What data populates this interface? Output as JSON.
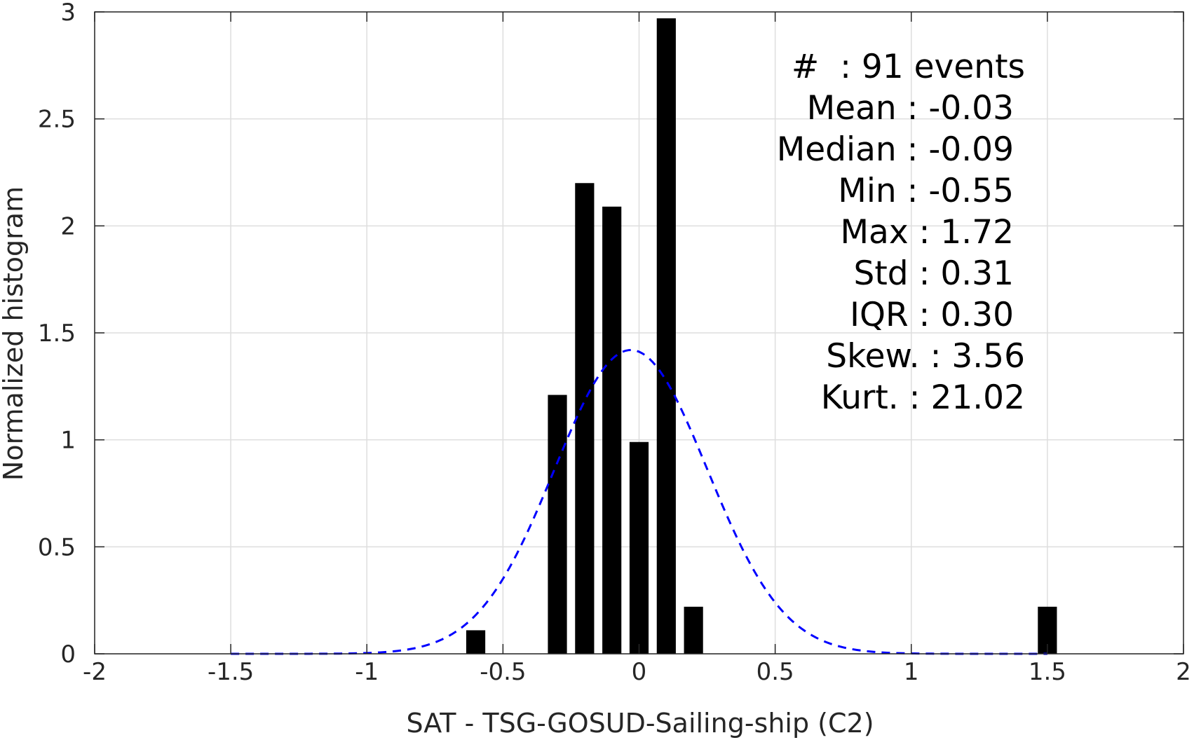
{
  "chart_data": {
    "type": "bar",
    "xlabel": "SAT - TSG-GOSUD-Sailing-ship (C2)",
    "ylabel": "Normalized histogram",
    "xlim": [
      -2,
      2
    ],
    "ylim": [
      0,
      3
    ],
    "grid": true,
    "x_ticks": [
      "-2",
      "-1.5",
      "-1",
      "-0.5",
      "0",
      "0.5",
      "1",
      "1.5",
      "2"
    ],
    "y_ticks": [
      "0",
      "0.5",
      "1",
      "1.5",
      "2",
      "2.5",
      "3"
    ],
    "bar_width": 0.07,
    "bar_color": "#000000",
    "bars": [
      {
        "x": -0.6,
        "value": 0.11
      },
      {
        "x": -0.3,
        "value": 1.21
      },
      {
        "x": -0.2,
        "value": 2.2
      },
      {
        "x": -0.1,
        "value": 2.09
      },
      {
        "x": 0.0,
        "value": 0.99
      },
      {
        "x": 0.1,
        "value": 2.97
      },
      {
        "x": 0.2,
        "value": 0.22
      },
      {
        "x": 1.5,
        "value": 0.22
      }
    ],
    "fit_curve": {
      "style": "dashed",
      "color": "#0000ff",
      "x_range": [
        -1.5,
        1.5
      ],
      "peak_x": -0.03,
      "peak_value": 1.42
    },
    "stats": [
      {
        "label": "#  : 91 events"
      },
      {
        "label": "Mean : -0.03"
      },
      {
        "label": "Median : -0.09"
      },
      {
        "label": "Min : -0.55"
      },
      {
        "label": "Max : 1.72"
      },
      {
        "label": "Std : 0.31"
      },
      {
        "label": "IQR : 0.30"
      },
      {
        "label": "Skew. : 3.56"
      },
      {
        "label": "Kurt. : 21.02"
      }
    ],
    "stats_placement": "top-right"
  }
}
